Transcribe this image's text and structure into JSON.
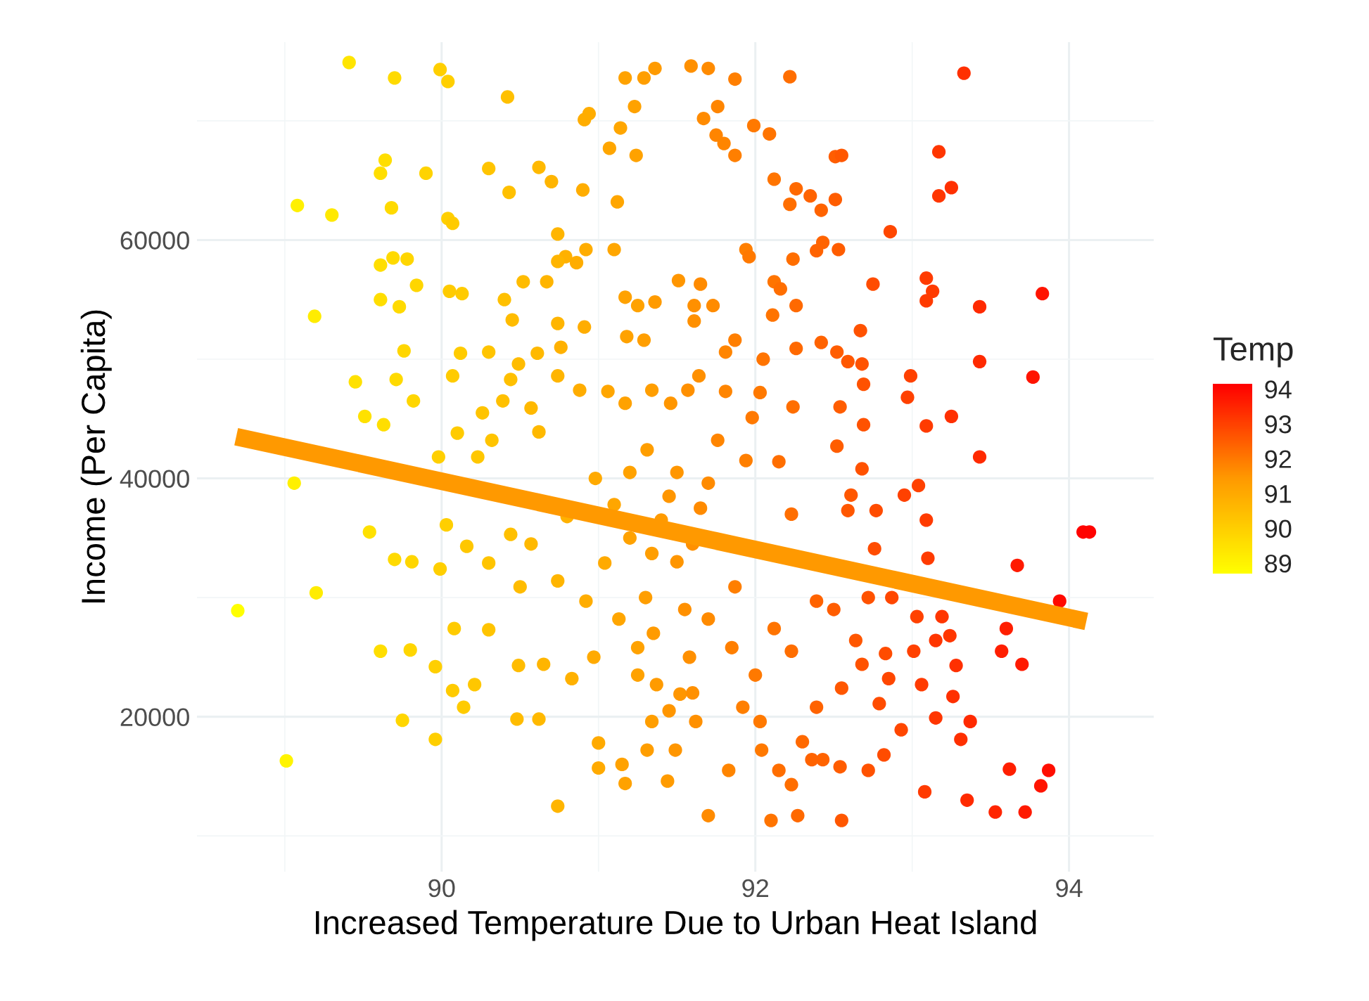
{
  "chart_data": {
    "type": "scatter",
    "xlabel": "Increased Temperature Due to Urban Heat Island",
    "ylabel": "Income (Per Capita)",
    "clabel": "Temp",
    "xlim": [
      88.44,
      94.54
    ],
    "xticks": [
      90,
      92,
      94
    ],
    "ylim": [
      7000,
      76600
    ],
    "yticks": [
      20000,
      40000,
      60000
    ],
    "clim": [
      88.7,
      94.15
    ],
    "cticks": [
      89,
      90,
      91,
      92,
      93,
      94
    ],
    "grid": true,
    "legend": false,
    "marker": "circle",
    "series": [
      {
        "x": [
          88.7,
          89.01,
          89.06,
          89.2,
          89.19,
          89.08,
          89.3,
          89.41,
          89.7,
          89.99,
          90.04,
          90.42,
          90.91,
          90.94,
          91.17,
          91.29,
          91.36,
          91.23,
          91.14,
          91.07,
          91.24,
          89.64,
          89.61,
          89.9,
          90.3,
          90.62,
          90.7,
          90.43,
          90.9,
          91.12,
          89.68,
          90.04,
          90.07,
          90.74,
          90.79,
          90.74,
          90.86,
          90.92,
          91.1,
          89.61,
          89.69,
          89.78,
          89.84,
          89.61,
          89.73,
          90.05,
          90.13,
          90.52,
          90.67,
          90.4,
          91.17,
          91.25,
          91.36,
          89.76,
          89.45,
          89.71,
          89.82,
          89.51,
          89.63,
          90.45,
          90.74,
          90.91,
          90.12,
          90.3,
          90.61,
          90.76,
          91.18,
          91.29,
          90.07,
          90.49,
          90.44,
          90.74,
          90.88,
          91.06,
          90.26,
          90.39,
          90.57,
          91.17,
          91.34,
          90.1,
          90.32,
          90.62,
          91.59,
          91.7,
          91.87,
          92.22,
          93.33,
          91.76,
          91.67,
          91.99,
          92.09,
          91.75,
          91.8,
          91.87,
          92.51,
          92.55,
          93.17,
          92.12,
          92.26,
          92.35,
          92.22,
          92.42,
          92.51,
          93.17,
          93.25,
          92.86,
          91.94,
          91.96,
          92.24,
          92.39,
          92.43,
          92.53,
          91.51,
          91.65,
          92.12,
          92.16,
          92.75,
          93.09,
          93.13,
          93.09,
          93.43,
          93.83,
          91.61,
          91.73,
          91.61,
          92.26,
          92.11,
          92.67,
          91.87,
          91.81,
          92.26,
          92.42,
          92.52,
          92.59,
          92.68,
          92.05,
          93.43,
          93.77,
          92.99,
          92.97,
          92.69,
          92.54,
          93.25,
          93.09,
          92.69,
          92.24,
          91.98,
          92.03,
          91.81,
          91.64,
          91.57,
          91.46,
          89.54,
          89.7,
          89.81,
          89.99,
          89.61,
          89.8,
          89.96,
          89.75,
          89.96,
          90.74,
          91.0,
          91.0,
          91.17,
          90.48,
          90.62,
          90.14,
          90.07,
          90.21,
          90.08,
          90.3,
          90.49,
          90.65,
          90.83,
          90.97,
          91.15,
          91.44,
          90.16,
          90.3,
          90.44,
          90.57,
          90.5,
          90.74,
          90.92,
          91.13,
          90.03,
          89.98,
          90.23,
          90.8,
          90.98,
          91.31,
          91.04,
          91.34,
          91.25,
          91.37,
          91.34,
          91.31,
          93.43,
          92.95,
          93.04,
          93.09,
          93.1,
          94.09,
          94.13,
          93.67,
          93.94,
          93.6,
          93.57,
          93.7,
          93.28,
          93.26,
          93.37,
          93.31,
          93.62,
          93.87,
          93.82,
          93.08,
          93.35,
          93.53,
          93.72,
          92.55,
          92.1,
          92.27,
          91.7,
          91.83,
          92.23,
          92.54,
          92.43,
          92.72,
          92.82,
          92.93,
          93.15,
          93.06,
          93.01,
          92.83,
          92.64,
          92.55,
          92.68,
          92.85,
          92.79,
          92.39,
          92.3,
          92.15,
          92.04,
          92.77,
          92.76,
          92.59,
          92.52,
          92.68,
          92.61,
          92.23,
          92.5,
          92.72,
          92.87,
          93.03,
          93.19,
          93.24,
          93.15,
          92.39,
          92.23,
          92.12,
          92.15,
          91.76,
          91.94,
          91.7,
          91.87,
          91.7,
          91.58,
          91.85,
          92.0,
          91.92,
          91.52,
          91.62,
          91.49,
          92.03,
          92.36,
          91.2,
          91.4,
          91.5,
          91.3,
          91.6,
          91.45,
          91.1,
          91.55,
          91.35,
          91.6,
          91.45,
          91.25,
          91.5,
          91.65,
          91.2
        ],
        "values": [
          28900,
          16300,
          39600,
          30400,
          53600,
          62900,
          62100,
          74900,
          73600,
          74300,
          73300,
          72000,
          70100,
          70600,
          73600,
          73600,
          74400,
          71200,
          69400,
          67700,
          67100,
          66700,
          65600,
          65600,
          66000,
          66100,
          64900,
          64000,
          64200,
          63200,
          62700,
          61800,
          61400,
          60500,
          58600,
          58200,
          58100,
          59200,
          59200,
          57900,
          58500,
          58400,
          56200,
          55000,
          54400,
          55700,
          55500,
          56500,
          56500,
          55000,
          55200,
          54500,
          54800,
          50700,
          48100,
          48300,
          46500,
          45200,
          44500,
          53300,
          53000,
          52700,
          50500,
          50600,
          50500,
          51000,
          51900,
          51600,
          48600,
          49600,
          48300,
          48600,
          47400,
          47300,
          45500,
          46500,
          45900,
          46300,
          47400,
          43800,
          43200,
          43900,
          74600,
          74400,
          73500,
          73700,
          74000,
          71200,
          70200,
          69600,
          68900,
          68800,
          68100,
          67100,
          67000,
          67100,
          67400,
          65100,
          64300,
          63700,
          63000,
          62500,
          63400,
          63700,
          64400,
          60700,
          59200,
          58600,
          58400,
          59100,
          59800,
          59200,
          56600,
          56300,
          56500,
          55900,
          56300,
          56800,
          55700,
          54900,
          54400,
          55500,
          54500,
          54500,
          53200,
          54500,
          53700,
          52400,
          51600,
          50600,
          50900,
          51400,
          50600,
          49800,
          49600,
          50000,
          49800,
          48500,
          48600,
          46800,
          47900,
          46000,
          45200,
          44400,
          44500,
          46000,
          45100,
          47200,
          47300,
          48600,
          47400,
          46300,
          35500,
          33200,
          33000,
          32400,
          25500,
          25600,
          24200,
          19700,
          18100,
          12500,
          17800,
          15700,
          14400,
          19800,
          19800,
          20800,
          22200,
          22700,
          27400,
          27300,
          24300,
          24400,
          23200,
          25000,
          16000,
          14600,
          34300,
          32900,
          35300,
          34500,
          30900,
          31400,
          29700,
          28200,
          36100,
          41800,
          41800,
          36800,
          40000,
          42400,
          32900,
          33700,
          25800,
          22700,
          19600,
          17200,
          41800,
          38600,
          39400,
          36500,
          33300,
          35500,
          35500,
          32700,
          29700,
          27400,
          25500,
          24400,
          24300,
          21700,
          19600,
          18100,
          15600,
          15500,
          14200,
          13700,
          13000,
          12000,
          12000,
          11300,
          11300,
          11700,
          11700,
          15500,
          14300,
          15800,
          16400,
          15500,
          16800,
          18900,
          19900,
          22700,
          25500,
          25300,
          26400,
          22400,
          24400,
          23200,
          21100,
          20800,
          17900,
          15500,
          17200,
          37300,
          34100,
          37300,
          42700,
          40800,
          38600,
          37000,
          29000,
          30000,
          30000,
          28400,
          28400,
          26800,
          26400,
          29700,
          25500,
          27400,
          41400,
          43200,
          41500,
          39600,
          30900,
          28200,
          25000,
          25800,
          23500,
          20800,
          21900,
          19600,
          17200,
          19600,
          16400,
          35000,
          36500,
          33000,
          30000,
          34500,
          38500,
          37800,
          29000,
          27000,
          22000,
          20500,
          23500,
          40500,
          37500,
          40500
        ],
        "colors": [
          "#ffff00",
          "#fff400",
          "#fff000",
          "#ffec00",
          "#ffec00",
          "#fff000",
          "#ffe900",
          "#ffe500",
          "#ffda00",
          "#ffcf00",
          "#ffcf00",
          "#ffc000",
          "#ffad00",
          "#ffad00",
          "#ffa200",
          "#ff9e00",
          "#ff9b00",
          "#ffa200",
          "#ffa600",
          "#ffa600",
          "#ffa200",
          "#ffde00",
          "#ffde00",
          "#ffd300",
          "#ffc400",
          "#ffb900",
          "#ffb500",
          "#ffc000",
          "#ffad00",
          "#ffa600",
          "#ffda00",
          "#ffcf00",
          "#ffcb00",
          "#ffb500",
          "#ffb100",
          "#ffb500",
          "#ffad00",
          "#ffad00",
          "#ffa600",
          "#ffde00",
          "#ffda00",
          "#ffd600",
          "#ffd600",
          "#ffde00",
          "#ffda00",
          "#ffcb00",
          "#ffcb00",
          "#ffbc00",
          "#ffb500",
          "#ffc000",
          "#ffa200",
          "#ffa200",
          "#ff9b00",
          "#ffd600",
          "#ffe100",
          "#ffda00",
          "#ffd600",
          "#ffe100",
          "#ffde00",
          "#ffbc00",
          "#ffb500",
          "#ffad00",
          "#ffcb00",
          "#ffc400",
          "#ffb900",
          "#ffb100",
          "#ffa200",
          "#ff9e00",
          "#ffcb00",
          "#ffbc00",
          "#ffc000",
          "#ffb500",
          "#ffad00",
          "#ffa600",
          "#ffc400",
          "#ffc000",
          "#ffb900",
          "#ffa200",
          "#ff9e00",
          "#ffcb00",
          "#ffc400",
          "#ffb900",
          "#ff9000",
          "#ff8b00",
          "#ff7f00",
          "#ff6e00",
          "#ff3000",
          "#ff8500",
          "#ff8b00",
          "#ff7900",
          "#ff7400",
          "#ff8500",
          "#ff8500",
          "#ff7f00",
          "#ff5d00",
          "#ff5700",
          "#ff3600",
          "#ff7400",
          "#ff6900",
          "#ff6300",
          "#ff6e00",
          "#ff6300",
          "#ff5d00",
          "#ff3600",
          "#ff3000",
          "#ff4700",
          "#ff7f00",
          "#ff7900",
          "#ff6e00",
          "#ff6300",
          "#ff6300",
          "#ff5d00",
          "#ff9600",
          "#ff8b00",
          "#ff7400",
          "#ff6e00",
          "#ff4c00",
          "#ff3b00",
          "#ff3b00",
          "#ff3b00",
          "#ff2a00",
          "#ff1400",
          "#ff9000",
          "#ff8b00",
          "#ff9000",
          "#ff6900",
          "#ff7400",
          "#ff5200",
          "#ff7f00",
          "#ff8500",
          "#ff6900",
          "#ff6300",
          "#ff5d00",
          "#ff5700",
          "#ff5200",
          "#ff7400",
          "#ff2a00",
          "#ff1400",
          "#ff4100",
          "#ff4100",
          "#ff5200",
          "#ff5d00",
          "#ff3000",
          "#ff3b00",
          "#ff5200",
          "#ff6e00",
          "#ff7900",
          "#ff7900",
          "#ff8500",
          "#ff9000",
          "#ff9000",
          "#ff9600",
          "#ffe100",
          "#ffda00",
          "#ffd600",
          "#ffcf00",
          "#ffde00",
          "#ffd600",
          "#ffcf00",
          "#ffd600",
          "#ffcf00",
          "#ffb500",
          "#ffaa00",
          "#ffaa00",
          "#ffa200",
          "#ffbc00",
          "#ffb900",
          "#ffcb00",
          "#ffcb00",
          "#ffc700",
          "#ffcb00",
          "#ffc400",
          "#ffbc00",
          "#ffb500",
          "#ffb100",
          "#ffaa00",
          "#ffa200",
          "#ff9b00",
          "#ffc700",
          "#ffc400",
          "#ffc000",
          "#ffb900",
          "#ffbc00",
          "#ffb500",
          "#ffad00",
          "#ffa600",
          "#ffcf00",
          "#ffcf00",
          "#ffc700",
          "#ffb100",
          "#ffaa00",
          "#ff9e00",
          "#ffaa00",
          "#ff9e00",
          "#ffa200",
          "#ff9b00",
          "#ff9e00",
          "#ff9e00",
          "#ff2a00",
          "#ff4100",
          "#ff4100",
          "#ff3b00",
          "#ff3b00",
          "#ff0300",
          "#ff0300",
          "#ff1a00",
          "#ff0900",
          "#ff1f00",
          "#ff1f00",
          "#ff1a00",
          "#ff3000",
          "#ff3000",
          "#ff2a00",
          "#ff3000",
          "#ff1f00",
          "#ff0e00",
          "#ff1400",
          "#ff3b00",
          "#ff2a00",
          "#ff2500",
          "#ff1a00",
          "#ff5700",
          "#ff7400",
          "#ff6900",
          "#ff8b00",
          "#ff8500",
          "#ff6e00",
          "#ff5d00",
          "#ff6300",
          "#ff5200",
          "#ff4c00",
          "#ff4700",
          "#ff3600",
          "#ff3b00",
          "#ff4100",
          "#ff4c00",
          "#ff5700",
          "#ff5700",
          "#ff5200",
          "#ff4700",
          "#ff4c00",
          "#ff6300",
          "#ff6900",
          "#ff6e00",
          "#ff7900",
          "#ff4c00",
          "#ff4c00",
          "#ff5700",
          "#ff5d00",
          "#ff5200",
          "#ff5700",
          "#ff6e00",
          "#ff5d00",
          "#ff5200",
          "#ff4700",
          "#ff4100",
          "#ff3600",
          "#ff3600",
          "#ff3600",
          "#ff6300",
          "#ff6e00",
          "#ff7400",
          "#ff6e00",
          "#ff8500",
          "#ff7f00",
          "#ff8b00",
          "#ff7f00",
          "#ff8b00",
          "#ff9000",
          "#ff7f00",
          "#ff7900",
          "#ff7f00",
          "#ff9600",
          "#ff9000",
          "#ff9600",
          "#ff7900",
          "#ff6300",
          "#ffa200",
          "#ff9b00",
          "#ff9600",
          "#ff9e00",
          "#ff9000",
          "#ff9600",
          "#ffa600",
          "#ff9000",
          "#ff9b00",
          "#ff9000",
          "#ff9600",
          "#ffa200",
          "#ff9600",
          "#ff8b00",
          "#ffa200"
        ]
      },
      {
        "type": "line",
        "color": "#ff9900",
        "marker": "none",
        "line_style": "solid",
        "x": [
          88.69,
          94.11
        ],
        "values": [
          43500,
          28000
        ]
      }
    ]
  }
}
